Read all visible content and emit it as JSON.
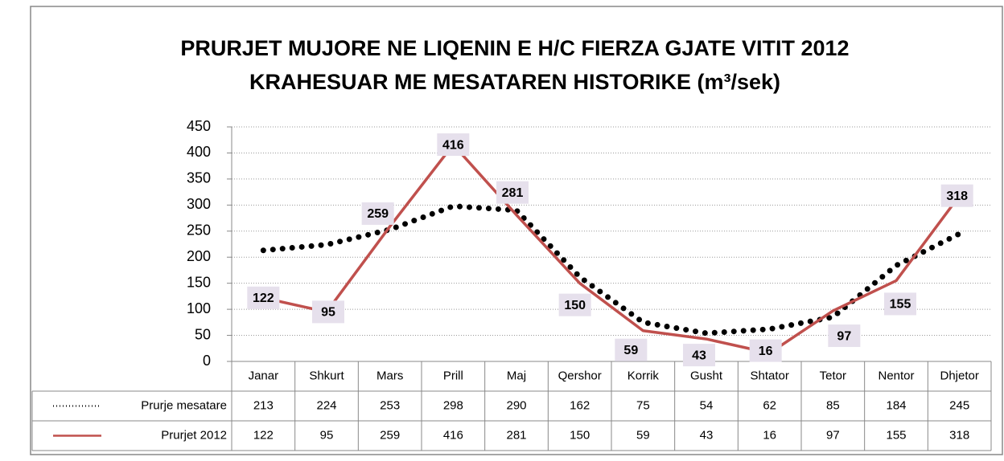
{
  "chart_data": {
    "type": "line",
    "title": [
      "PRURJET MUJORE NE LIQENIN E H/C FIERZA GJATE VITIT 2012",
      "KRAHESUAR ME MESATAREN HISTORIKE (m³/sek)"
    ],
    "categories": [
      "Janar",
      "Shkurt",
      "Mars",
      "Prill",
      "Maj",
      "Qershor",
      "Korrik",
      "Gusht",
      "Shtator",
      "Tetor",
      "Nentor",
      "Dhjetor"
    ],
    "series": [
      {
        "name": "Prurje mesatare",
        "color": "#000000",
        "style": "dotted",
        "values": [
          213,
          224,
          253,
          298,
          290,
          162,
          75,
          54,
          62,
          85,
          184,
          245
        ]
      },
      {
        "name": "Prurjet 2012",
        "color": "#c0504d",
        "style": "solid",
        "data_labels": true,
        "values": [
          122,
          95,
          259,
          416,
          281,
          150,
          59,
          43,
          16,
          97,
          155,
          318
        ]
      }
    ],
    "ylim": [
      0,
      450
    ],
    "yticks": [
      0,
      50,
      100,
      150,
      200,
      250,
      300,
      350,
      400,
      450
    ],
    "grid": true
  }
}
